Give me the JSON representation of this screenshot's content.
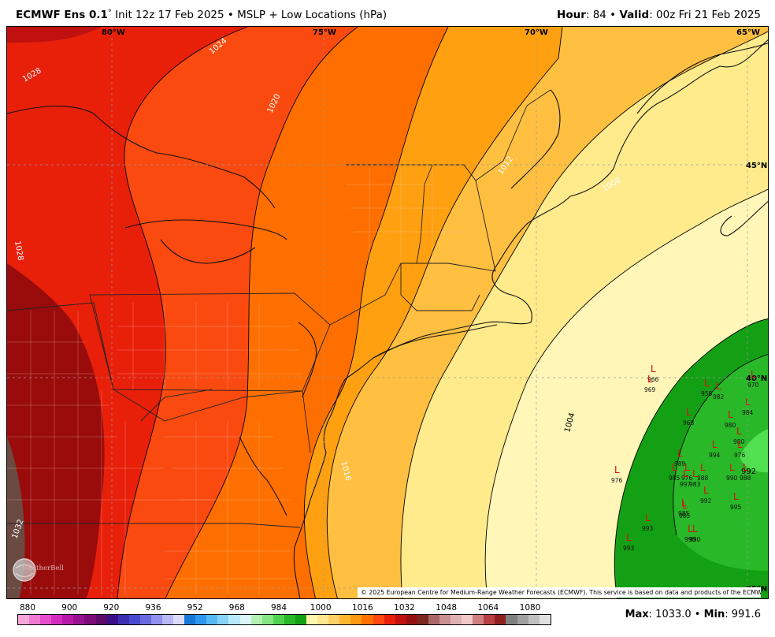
{
  "header": {
    "model": "ECMWF Ens 0.1",
    "degree": "°",
    "init": " Init 12z 17 Feb 2025 • MSLP + Low Locations (hPa)",
    "hour_label": "Hour",
    "hour_value": ": 84 • ",
    "valid_label": "Valid",
    "valid_value": ": 00z Fri 21 Feb 2025"
  },
  "map": {
    "lon_labels": [
      "80°W",
      "75°W",
      "70°W",
      "65°W"
    ],
    "lat_labels": [
      "45°N",
      "40°N",
      "35°N"
    ],
    "isobar_labels": [
      "1028",
      "1024",
      "1020",
      "1028",
      "1012",
      "1008",
      "1016",
      "1004",
      "992",
      "1032"
    ],
    "low_values": [
      "966",
      "969",
      "958",
      "982",
      "970",
      "984",
      "968",
      "980",
      "980",
      "976",
      "994",
      "989",
      "985",
      "976",
      "988",
      "990",
      "988",
      "997",
      "983",
      "992",
      "985",
      "995",
      "993",
      "990",
      "990",
      "993",
      "976",
      "985"
    ],
    "copyright": "© 2025 European Centre for Medium-Range Weather Forecasts (ECMWF). This service is based on data and products of the ECMWF.",
    "watermark": "WeatherBell"
  },
  "legend": {
    "ticks": [
      "880",
      "900",
      "920",
      "936",
      "952",
      "968",
      "984",
      "1000",
      "1016",
      "1032",
      "1048",
      "1064",
      "1080"
    ],
    "colors": [
      "#f4a6d8",
      "#f07ad0",
      "#e64ecb",
      "#d42bbf",
      "#b81aa8",
      "#981290",
      "#7a0d78",
      "#5a0a68",
      "#3a0d8a",
      "#3c2fb0",
      "#4a4ad0",
      "#6a6ae0",
      "#9090ee",
      "#b8b8f4",
      "#dcdcfa",
      "#1878d8",
      "#2d98ee",
      "#58b8f6",
      "#88d2fa",
      "#b8e8fc",
      "#dcf6fa",
      "#b4f0b4",
      "#84e684",
      "#50d250",
      "#28b828",
      "#14a014",
      "#fff6b0",
      "#ffe890",
      "#ffd068",
      "#ffb830",
      "#ff9a10",
      "#ff7000",
      "#ff4810",
      "#e8200a",
      "#c01010",
      "#961010",
      "#7a2820",
      "#a86868",
      "#c89090",
      "#e0b0b0",
      "#f0c8c8",
      "#d08080",
      "#b84040",
      "#902020",
      "#808080",
      "#a0a0a0",
      "#c0c0c0",
      "#e0e0e0"
    ],
    "max_label": "Max",
    "max_value": ": 1033.0 • ",
    "min_label": "Min",
    "min_value": ": 991.6"
  }
}
